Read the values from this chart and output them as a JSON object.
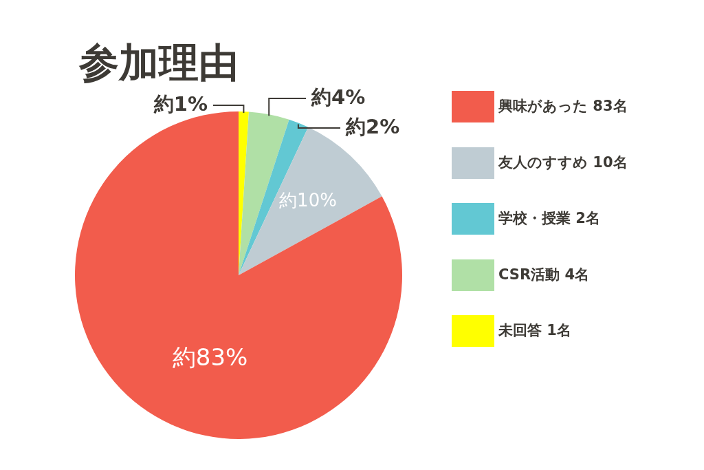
{
  "chart_data": {
    "type": "pie",
    "title": "参加理由",
    "categories": [
      "未回答 1名",
      "CSR活動 4名",
      "学校・授業 2名",
      "友人のすすめ 10名",
      "興味があった 83名"
    ],
    "values": [
      1,
      4,
      2,
      10,
      83
    ],
    "colors": [
      "#ffff00",
      "#b0e0a6",
      "#62c8d3",
      "#bfccd3",
      "#f25c4c"
    ],
    "value_labels": [
      "約1%",
      "約4%",
      "約2%",
      "約10%",
      "約83%"
    ],
    "legend": "right"
  }
}
